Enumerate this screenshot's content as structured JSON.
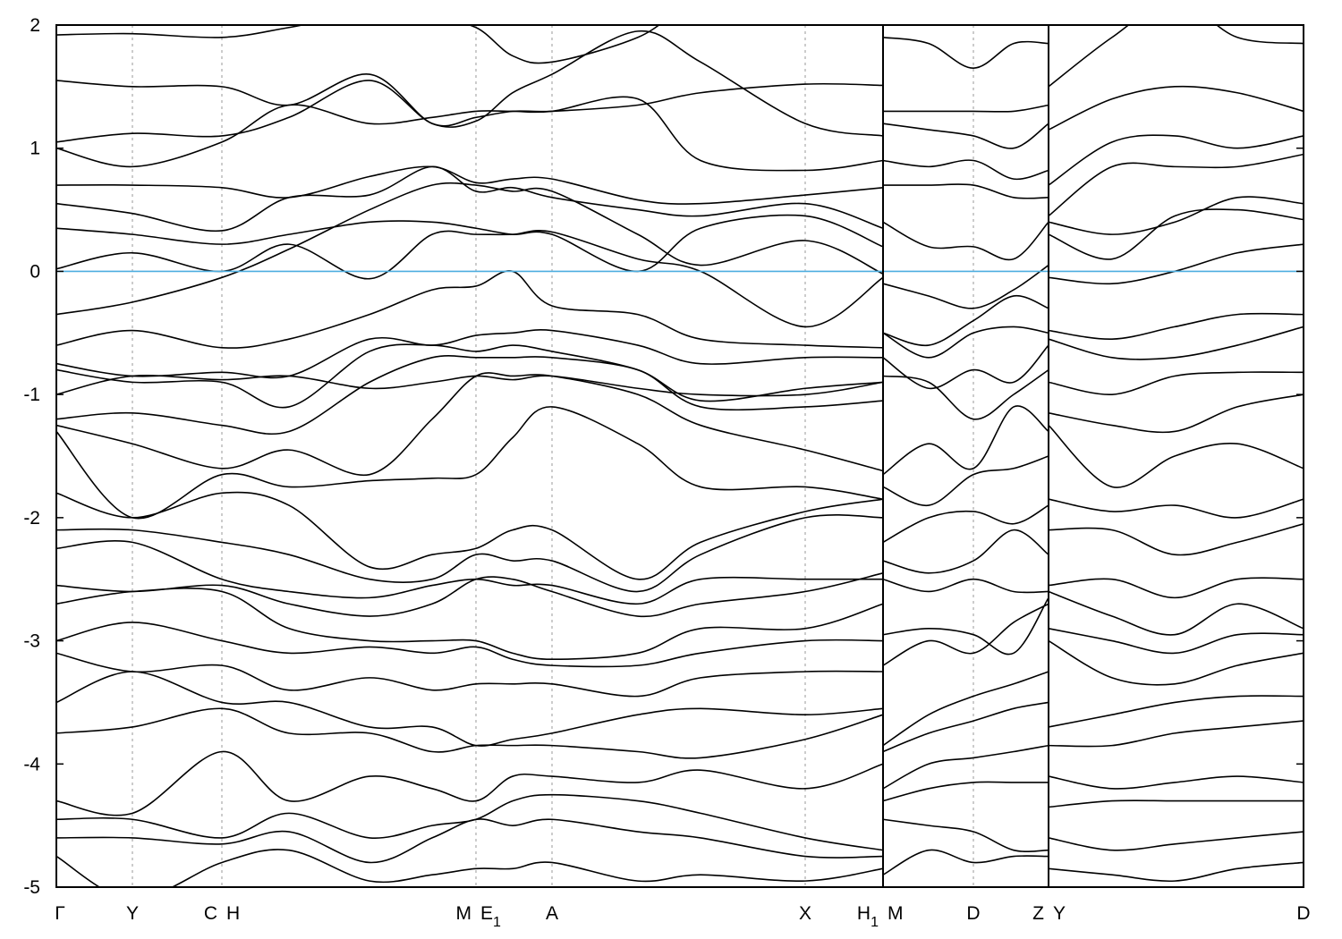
{
  "chart_data": {
    "type": "line",
    "title": "",
    "xlabel": "",
    "ylabel": "",
    "ylim": [
      -5,
      2
    ],
    "yticks": [
      "2",
      "1",
      "0",
      "-1",
      "-2",
      "-3",
      "-4",
      "-5"
    ],
    "ytick_values": [
      2,
      1,
      0,
      -1,
      -2,
      -3,
      -4,
      -5
    ],
    "fermi_level": 0,
    "fermi_color": "#4daee0",
    "band_color": "#000000",
    "grid": "dashed vertical lines at high-symmetry points",
    "kpoint_labels": [
      {
        "k": 0,
        "main": "Γ",
        "sub": ""
      },
      {
        "k": 0.85,
        "main": "Y",
        "sub": ""
      },
      {
        "k": 1.85,
        "main": "C",
        "sub": ""
      },
      {
        "k": 1.85,
        "main": "H",
        "sub": ""
      },
      {
        "k": 4.69,
        "main": "M",
        "sub": ""
      },
      {
        "k": 4.69,
        "main": "E",
        "sub": "1"
      },
      {
        "k": 5.54,
        "main": "A",
        "sub": ""
      },
      {
        "k": 8.37,
        "main": "X",
        "sub": ""
      },
      {
        "k": 9.24,
        "main": "H",
        "sub": "1"
      },
      {
        "k": 9.24,
        "main": "M",
        "sub": ""
      },
      {
        "k": 10.25,
        "main": "D",
        "sub": ""
      },
      {
        "k": 11.09,
        "main": "Z",
        "sub": ""
      },
      {
        "k": 11.09,
        "main": "Y",
        "sub": ""
      },
      {
        "k": 13.94,
        "main": "D",
        "sub": ""
      }
    ],
    "xlim": [
      0,
      13.94
    ],
    "segments": [
      {
        "k": [
          0,
          0.85,
          1.85,
          2.6,
          3.5,
          4.2,
          4.69,
          5.1,
          5.54,
          6.5,
          7.2,
          8.37,
          9.24
        ],
        "bands": [
          [
            1.92,
            1.93,
            1.9,
            1.98,
            2.1,
            2.05,
            1.98,
            1.75,
            1.7,
            1.9,
            2.2,
            2.3,
            2.3
          ],
          [
            1.55,
            1.5,
            1.5,
            1.35,
            1.6,
            1.2,
            1.25,
            1.3,
            1.3,
            1.35,
            1.45,
            1.52,
            1.51
          ],
          [
            1.05,
            1.12,
            1.1,
            1.25,
            1.55,
            1.2,
            1.22,
            1.45,
            1.6,
            1.95,
            1.7,
            1.2,
            1.1
          ],
          [
            1.0,
            0.85,
            1.05,
            1.35,
            1.2,
            1.25,
            1.3,
            1.3,
            1.3,
            1.4,
            0.9,
            0.82,
            0.9
          ],
          [
            0.7,
            0.7,
            0.68,
            0.6,
            0.77,
            0.85,
            0.72,
            0.75,
            0.75,
            0.58,
            0.55,
            0.62,
            0.68
          ],
          [
            0.55,
            0.47,
            0.33,
            0.6,
            0.62,
            0.85,
            0.65,
            0.68,
            0.6,
            0.5,
            0.45,
            0.55,
            0.35
          ],
          [
            0.35,
            0.3,
            0.22,
            0.3,
            0.4,
            0.4,
            0.35,
            0.3,
            0.3,
            0.0,
            0.35,
            0.45,
            0.2
          ],
          [
            0.02,
            0.15,
            0.0,
            0.22,
            -0.06,
            0.3,
            0.3,
            0.3,
            0.32,
            0.1,
            0.0,
            -0.45,
            -0.05
          ],
          [
            -0.35,
            -0.25,
            -0.05,
            0.18,
            0.5,
            0.7,
            0.7,
            0.65,
            0.65,
            0.3,
            0.05,
            0.25,
            -0.02
          ],
          [
            -0.6,
            -0.48,
            -0.62,
            -0.55,
            -0.35,
            -0.15,
            -0.12,
            0.0,
            -0.28,
            -0.35,
            -0.55,
            -0.6,
            -0.62
          ],
          [
            -0.75,
            -0.85,
            -0.82,
            -0.85,
            -0.55,
            -0.6,
            -0.52,
            -0.5,
            -0.48,
            -0.6,
            -0.75,
            -0.7,
            -0.7
          ],
          [
            -0.8,
            -0.9,
            -0.9,
            -1.1,
            -0.65,
            -0.6,
            -0.65,
            -0.6,
            -0.65,
            -0.8,
            -1.05,
            -0.95,
            -0.9
          ],
          [
            -1.0,
            -0.85,
            -0.88,
            -0.85,
            -0.95,
            -0.9,
            -0.85,
            -0.88,
            -0.85,
            -0.95,
            -1.0,
            -1.0,
            -0.9
          ],
          [
            -1.2,
            -1.15,
            -1.25,
            -1.3,
            -0.9,
            -0.7,
            -0.7,
            -0.7,
            -0.7,
            -0.8,
            -1.1,
            -1.1,
            -1.05
          ],
          [
            -1.25,
            -1.4,
            -1.6,
            -1.45,
            -1.65,
            -1.2,
            -0.85,
            -0.85,
            -0.85,
            -1.0,
            -1.25,
            -1.45,
            -1.62
          ],
          [
            -1.3,
            -2.0,
            -1.65,
            -1.75,
            -1.7,
            -1.68,
            -1.65,
            -1.35,
            -1.1,
            -1.4,
            -1.75,
            -1.75,
            -1.85
          ],
          [
            -1.8,
            -2.0,
            -1.8,
            -1.9,
            -2.4,
            -2.3,
            -2.25,
            -2.1,
            -2.1,
            -2.5,
            -2.2,
            -1.95,
            -1.85
          ],
          [
            -2.1,
            -2.1,
            -2.2,
            -2.3,
            -2.5,
            -2.5,
            -2.3,
            -2.35,
            -2.35,
            -2.6,
            -2.3,
            -2.0,
            -2.0
          ],
          [
            -2.25,
            -2.2,
            -2.5,
            -2.6,
            -2.65,
            -2.55,
            -2.5,
            -2.55,
            -2.55,
            -2.7,
            -2.5,
            -2.5,
            -2.5
          ],
          [
            -2.55,
            -2.6,
            -2.55,
            -2.7,
            -2.8,
            -2.7,
            -2.5,
            -2.5,
            -2.6,
            -2.8,
            -2.7,
            -2.6,
            -2.45
          ],
          [
            -2.7,
            -2.6,
            -2.6,
            -2.9,
            -3.0,
            -3.0,
            -3.0,
            -3.1,
            -3.15,
            -3.1,
            -2.9,
            -2.9,
            -2.7
          ],
          [
            -3.0,
            -2.85,
            -3.0,
            -3.1,
            -3.05,
            -3.1,
            -3.05,
            -3.15,
            -3.2,
            -3.2,
            -3.1,
            -3.0,
            -3.0
          ],
          [
            -3.1,
            -3.25,
            -3.2,
            -3.4,
            -3.3,
            -3.4,
            -3.35,
            -3.35,
            -3.35,
            -3.45,
            -3.3,
            -3.25,
            -3.25
          ],
          [
            -3.5,
            -3.25,
            -3.5,
            -3.5,
            -3.7,
            -3.7,
            -3.85,
            -3.8,
            -3.75,
            -3.6,
            -3.55,
            -3.6,
            -3.55
          ],
          [
            -3.75,
            -3.7,
            -3.55,
            -3.75,
            -3.75,
            -3.9,
            -3.85,
            -3.85,
            -3.85,
            -3.9,
            -3.95,
            -3.8,
            -3.6
          ],
          [
            -4.3,
            -4.4,
            -3.9,
            -4.3,
            -4.1,
            -4.2,
            -4.3,
            -4.1,
            -4.1,
            -4.15,
            -4.05,
            -4.2,
            -4.0
          ],
          [
            -4.45,
            -4.45,
            -4.6,
            -4.4,
            -4.6,
            -4.5,
            -4.45,
            -4.3,
            -4.25,
            -4.3,
            -4.4,
            -4.6,
            -4.7
          ],
          [
            -4.6,
            -4.6,
            -4.65,
            -4.55,
            -4.8,
            -4.6,
            -4.45,
            -4.5,
            -4.45,
            -4.55,
            -4.6,
            -4.75,
            -4.75
          ],
          [
            -4.75,
            -5.1,
            -4.8,
            -4.7,
            -4.95,
            -4.9,
            -4.85,
            -4.85,
            -4.8,
            -4.95,
            -4.9,
            -4.95,
            -4.85
          ]
        ]
      },
      {
        "k": [
          9.24,
          9.75,
          10.25,
          10.7,
          11.09
        ],
        "bands": [
          [
            1.9,
            1.85,
            1.65,
            1.85,
            1.85
          ],
          [
            1.3,
            1.3,
            1.3,
            1.3,
            1.35
          ],
          [
            1.2,
            1.15,
            1.1,
            1.0,
            1.2
          ],
          [
            0.9,
            0.85,
            0.9,
            0.75,
            0.82
          ],
          [
            0.7,
            0.7,
            0.7,
            0.6,
            0.6
          ],
          [
            0.4,
            0.2,
            0.2,
            0.1,
            0.4
          ],
          [
            -0.1,
            -0.2,
            -0.3,
            -0.15,
            0.05
          ],
          [
            -0.5,
            -0.6,
            -0.4,
            -0.2,
            -0.3
          ],
          [
            -0.5,
            -0.7,
            -0.5,
            -0.45,
            -0.5
          ],
          [
            -0.7,
            -0.95,
            -0.8,
            -0.9,
            -0.6
          ],
          [
            -0.85,
            -0.9,
            -1.2,
            -1.0,
            -0.8
          ],
          [
            -1.65,
            -1.4,
            -1.6,
            -1.1,
            -1.3
          ],
          [
            -1.75,
            -1.9,
            -1.65,
            -1.6,
            -1.5
          ],
          [
            -2.2,
            -2.0,
            -1.95,
            -2.05,
            -1.9
          ],
          [
            -2.35,
            -2.45,
            -2.35,
            -2.1,
            -2.3
          ],
          [
            -2.5,
            -2.6,
            -2.5,
            -2.6,
            -2.6
          ],
          [
            -2.95,
            -2.9,
            -2.95,
            -3.1,
            -2.65
          ],
          [
            -3.2,
            -3.0,
            -3.1,
            -2.85,
            -2.7
          ],
          [
            -3.85,
            -3.6,
            -3.45,
            -3.35,
            -3.25
          ],
          [
            -3.9,
            -3.75,
            -3.65,
            -3.55,
            -3.5
          ],
          [
            -4.2,
            -4.0,
            -3.95,
            -3.9,
            -3.85
          ],
          [
            -4.3,
            -4.2,
            -4.15,
            -4.15,
            -4.15
          ],
          [
            -4.45,
            -4.5,
            -4.55,
            -4.7,
            -4.7
          ],
          [
            -4.9,
            -4.7,
            -4.8,
            -4.75,
            -4.75
          ]
        ]
      },
      {
        "k": [
          11.09,
          11.8,
          12.5,
          13.2,
          13.94
        ],
        "bands": [
          [
            1.5,
            1.9,
            2.2,
            1.9,
            1.85
          ],
          [
            1.15,
            1.4,
            1.5,
            1.45,
            1.3
          ],
          [
            0.7,
            1.05,
            1.1,
            1.0,
            1.1
          ],
          [
            0.45,
            0.85,
            0.85,
            0.85,
            0.95
          ],
          [
            0.4,
            0.3,
            0.4,
            0.6,
            0.55
          ],
          [
            0.3,
            0.1,
            0.45,
            0.5,
            0.42
          ],
          [
            -0.05,
            -0.1,
            0.0,
            0.15,
            0.22
          ],
          [
            -0.48,
            -0.55,
            -0.45,
            -0.35,
            -0.35
          ],
          [
            -0.55,
            -0.7,
            -0.7,
            -0.6,
            -0.45
          ],
          [
            -0.9,
            -1.0,
            -0.85,
            -0.82,
            -0.82
          ],
          [
            -1.15,
            -1.25,
            -1.3,
            -1.1,
            -1.0
          ],
          [
            -1.25,
            -1.75,
            -1.5,
            -1.4,
            -1.6
          ],
          [
            -1.85,
            -1.95,
            -1.9,
            -2.0,
            -1.85
          ],
          [
            -2.1,
            -2.1,
            -2.3,
            -2.2,
            -2.05
          ],
          [
            -2.55,
            -2.5,
            -2.65,
            -2.5,
            -2.5
          ],
          [
            -2.6,
            -2.8,
            -2.95,
            -2.7,
            -2.9
          ],
          [
            -2.9,
            -3.0,
            -3.1,
            -2.95,
            -2.95
          ],
          [
            -3.0,
            -3.3,
            -3.35,
            -3.2,
            -3.1
          ],
          [
            -3.7,
            -3.6,
            -3.5,
            -3.45,
            -3.45
          ],
          [
            -3.85,
            -3.85,
            -3.75,
            -3.7,
            -3.65
          ],
          [
            -4.1,
            -4.2,
            -4.15,
            -4.1,
            -4.15
          ],
          [
            -4.35,
            -4.3,
            -4.3,
            -4.3,
            -4.3
          ],
          [
            -4.6,
            -4.7,
            -4.65,
            -4.6,
            -4.55
          ],
          [
            -4.85,
            -4.9,
            -4.95,
            -4.85,
            -4.8
          ]
        ]
      }
    ]
  }
}
